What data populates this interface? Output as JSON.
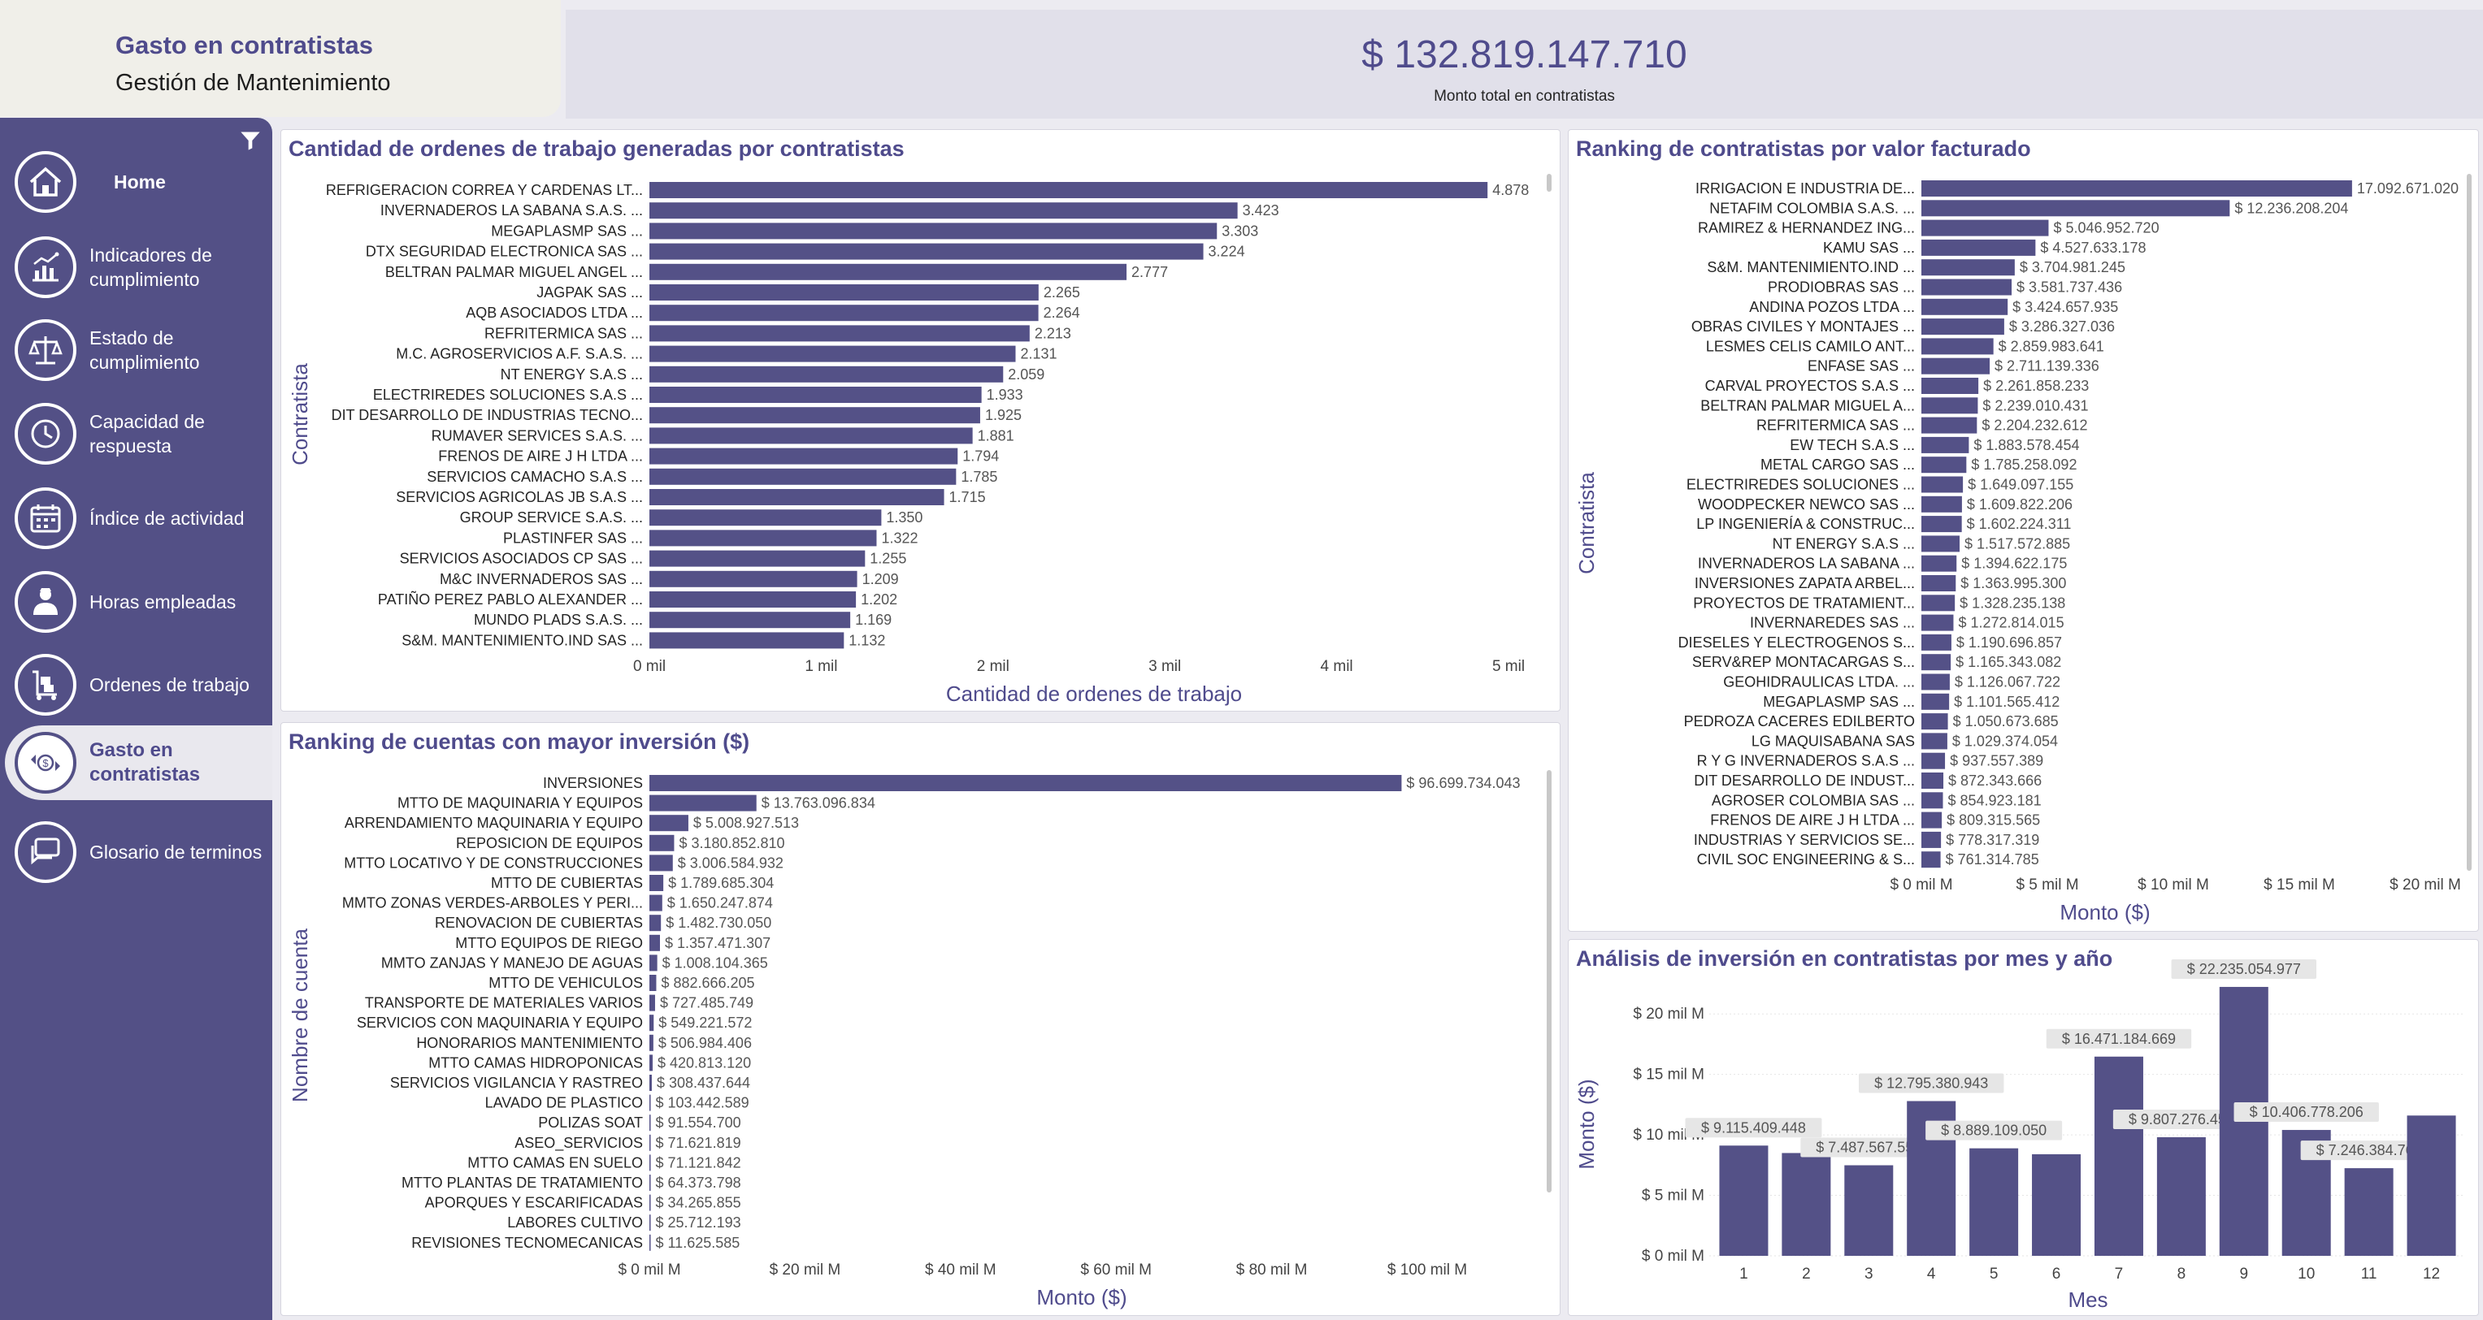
{
  "header": {
    "title": "Gasto en contratistas",
    "subtitle": "Gestión de Mantenimiento",
    "kpi_value": "$ 132.819.147.710",
    "kpi_label": "Monto total en contratistas"
  },
  "colors": {
    "accent": "#535086",
    "bar": "#545187",
    "title": "#4f4b8c"
  },
  "sidebar": {
    "filter_icon": "filter-icon",
    "items": [
      {
        "label": "Home",
        "icon": "home-icon"
      },
      {
        "label": "Indicadores de cumplimiento",
        "icon": "chart-icon"
      },
      {
        "label": "Estado de cumplimiento",
        "icon": "scale-icon"
      },
      {
        "label": "Capacidad de respuesta",
        "icon": "clock-icon"
      },
      {
        "label": "Índice de actividad",
        "icon": "calendar-icon"
      },
      {
        "label": "Horas empleadas",
        "icon": "worker-icon"
      },
      {
        "label": "Ordenes de trabajo",
        "icon": "cart-icon"
      },
      {
        "label": "Gasto en contratistas",
        "icon": "money-exchange-icon",
        "active": true
      },
      {
        "label": "Glosario de terminos",
        "icon": "chat-icon"
      }
    ]
  },
  "chart_data": [
    {
      "id": "ordenes",
      "type": "bar",
      "orientation": "horizontal",
      "title": "Cantidad de ordenes de trabajo generadas por contratistas",
      "xlabel": "Cantidad de ordenes de trabajo",
      "ylabel": "Contratista",
      "xlim": [
        0,
        5000
      ],
      "xticks": [
        0,
        1000,
        2000,
        3000,
        4000,
        5000
      ],
      "xtick_labels": [
        "0 mil",
        "1 mil",
        "2 mil",
        "3 mil",
        "4 mil",
        "5 mil"
      ],
      "categories": [
        "REFRIGERACION CORREA Y CARDENAS LT...",
        "INVERNADEROS LA SABANA S.A.S. ...",
        "MEGAPLASMP SAS ...",
        "DTX SEGURIDAD ELECTRONICA SAS ...",
        "BELTRAN PALMAR MIGUEL ANGEL ...",
        "JAGPAK SAS ...",
        "AQB ASOCIADOS LTDA ...",
        "REFRITERMICA SAS ...",
        "M.C. AGROSERVICIOS A.F. S.A.S. ...",
        "NT ENERGY S.A.S ...",
        "ELECTRIREDES SOLUCIONES S.A.S ...",
        "DIT DESARROLLO DE INDUSTRIAS TECNO...",
        "RUMAVER SERVICES S.A.S. ...",
        "FRENOS DE AIRE J H LTDA ...",
        "SERVICIOS CAMACHO S.A.S ...",
        "SERVICIOS AGRICOLAS JB S.A.S ...",
        "GROUP SERVICE S.A.S. ...",
        "PLASTINFER SAS ...",
        "SERVICIOS ASOCIADOS CP SAS ...",
        "M&C INVERNADEROS SAS ...",
        "PATIÑO PEREZ PABLO ALEXANDER ...",
        "MUNDO PLADS S.A.S. ...",
        "S&M. MANTENIMIENTO.IND SAS ..."
      ],
      "values": [
        4878,
        3423,
        3303,
        3224,
        2777,
        2265,
        2264,
        2213,
        2131,
        2059,
        1933,
        1925,
        1881,
        1794,
        1785,
        1715,
        1350,
        1322,
        1255,
        1209,
        1202,
        1169,
        1132
      ],
      "value_labels": [
        "4.878",
        "3.423",
        "3.303",
        "3.224",
        "2.777",
        "2.265",
        "2.264",
        "2.213",
        "2.131",
        "2.059",
        "1.933",
        "1.925",
        "1.881",
        "1.794",
        "1.785",
        "1.715",
        "1.350",
        "1.322",
        "1.255",
        "1.209",
        "1.202",
        "1.169",
        "1.132"
      ]
    },
    {
      "id": "cuentas",
      "type": "bar",
      "orientation": "horizontal",
      "title": "Ranking de cuentas con mayor inversión ($)",
      "xlabel": "Monto ($)",
      "ylabel": "Nombre de cuenta",
      "xlim": [
        0,
        100000000000
      ],
      "xticks": [
        0,
        20000000000,
        40000000000,
        60000000000,
        80000000000,
        100000000000
      ],
      "xtick_labels": [
        "$ 0 mil M",
        "$ 20 mil M",
        "$ 40 mil M",
        "$ 60 mil M",
        "$ 80 mil M",
        "$ 100 mil M"
      ],
      "categories": [
        "INVERSIONES",
        "MTTO DE MAQUINARIA Y EQUIPOS",
        "ARRENDAMIENTO MAQUINARIA Y EQUIPO",
        "REPOSICION DE EQUIPOS",
        "MTTO LOCATIVO Y DE CONSTRUCCIONES",
        "MTTO DE CUBIERTAS",
        "MMTO ZONAS VERDES-ARBOLES Y PERI...",
        "RENOVACION DE CUBIERTAS",
        "MTTO EQUIPOS DE RIEGO",
        "MMTO ZANJAS Y MANEJO DE AGUAS",
        "MTTO DE VEHICULOS",
        "TRANSPORTE DE MATERIALES VARIOS",
        "SERVICIOS CON MAQUINARIA Y EQUIPO",
        "HONORARIOS MANTENIMIENTO",
        "MTTO CAMAS HIDROPONICAS",
        "SERVICIOS VIGILANCIA Y RASTREO",
        "LAVADO DE PLASTICO",
        "POLIZAS SOAT",
        "ASEO_SERVICIOS",
        "MTTO CAMAS EN SUELO",
        "MTTO PLANTAS DE TRATAMIENTO",
        "APORQUES Y ESCARIFICADAS",
        "LABORES CULTIVO",
        "REVISIONES TECNOMECANICAS"
      ],
      "values": [
        96699734043,
        13763096834,
        5008927513,
        3180852810,
        3006584932,
        1789685304,
        1650247874,
        1482730050,
        1357471307,
        1008104365,
        882666205,
        727485749,
        549221572,
        506984406,
        420813120,
        308437644,
        103442589,
        91554700,
        71621819,
        71121842,
        64373798,
        34265855,
        25712193,
        11625585
      ],
      "value_labels": [
        "$ 96.699.734.043",
        "$ 13.763.096.834",
        "$ 5.008.927.513",
        "$ 3.180.852.810",
        "$ 3.006.584.932",
        "$ 1.789.685.304",
        "$ 1.650.247.874",
        "$ 1.482.730.050",
        "$ 1.357.471.307",
        "$ 1.008.104.365",
        "$ 882.666.205",
        "$ 727.485.749",
        "$ 549.221.572",
        "$ 506.984.406",
        "$ 420.813.120",
        "$ 308.437.644",
        "$ 103.442.589",
        "$ 91.554.700",
        "$ 71.621.819",
        "$ 71.121.842",
        "$ 64.373.798",
        "$ 34.265.855",
        "$ 25.712.193",
        "$ 11.625.585"
      ]
    },
    {
      "id": "ranking",
      "type": "bar",
      "orientation": "horizontal",
      "title": "Ranking de contratistas por valor facturado",
      "xlabel": "Monto ($)",
      "ylabel": "Contratista",
      "xlim": [
        0,
        20000000000
      ],
      "xticks": [
        0,
        5000000000,
        10000000000,
        15000000000,
        20000000000
      ],
      "xtick_labels": [
        "$ 0 mil M",
        "$ 5 mil M",
        "$ 10 mil M",
        "$ 15 mil M",
        "$ 20 mil M"
      ],
      "categories": [
        "IRRIGACION E INDUSTRIA DE...",
        "NETAFIM COLOMBIA S.A.S. ...",
        "RAMIREZ & HERNANDEZ ING...",
        "KAMU SAS ...",
        "S&M. MANTENIMIENTO.IND ...",
        "PRODIOBRAS SAS ...",
        "ANDINA POZOS LTDA ...",
        "OBRAS CIVILES Y MONTAJES ...",
        "LESMES CELIS CAMILO ANT...",
        "ENFASE SAS ...",
        "CARVAL PROYECTOS S.A.S ...",
        "BELTRAN PALMAR MIGUEL A...",
        "REFRITERMICA SAS ...",
        "EW TECH S.A.S ...",
        "METAL CARGO SAS ...",
        "ELECTRIREDES SOLUCIONES ...",
        "WOODPECKER NEWCO SAS ...",
        "LP INGENIERÍA & CONSTRUC...",
        "NT ENERGY S.A.S ...",
        "INVERNADEROS LA SABANA ...",
        "INVERSIONES ZAPATA ARBEL...",
        "PROYECTOS DE TRATAMIENT...",
        "INVERNAREDES SAS ...",
        "DIESELES Y ELECTROGENOS S...",
        "SERV&REP MONTACARGAS S...",
        "GEOHIDRAULICAS LTDA. ...",
        "MEGAPLASMP SAS ...",
        "PEDROZA CACERES EDILBERTO",
        "LG MAQUISABANA SAS",
        "R Y G INVERNADEROS S.A.S ...",
        "DIT DESARROLLO DE INDUST...",
        "AGROSER COLOMBIA SAS ...",
        "FRENOS DE AIRE J H LTDA ...",
        "INDUSTRIAS Y SERVICIOS SE...",
        "CIVIL SOC ENGINEERING & S..."
      ],
      "values": [
        17092671020,
        12236208204,
        5046952720,
        4527633178,
        3704981245,
        3581737436,
        3424657935,
        3286327036,
        2859983641,
        2711139336,
        2261858233,
        2239010431,
        2204232612,
        1883578454,
        1785258092,
        1649097155,
        1609822206,
        1602224311,
        1517572885,
        1394622175,
        1363995300,
        1328235138,
        1272814015,
        1190696857,
        1165343082,
        1126067722,
        1101565412,
        1050673685,
        1029374054,
        937557389,
        872343666,
        854923181,
        809315565,
        778317319,
        761314785
      ],
      "value_labels": [
        "17.092.671.020",
        "$ 12.236.208.204",
        "$ 5.046.952.720",
        "$ 4.527.633.178",
        "$ 3.704.981.245",
        "$ 3.581.737.436",
        "$ 3.424.657.935",
        "$ 3.286.327.036",
        "$ 2.859.983.641",
        "$ 2.711.139.336",
        "$ 2.261.858.233",
        "$ 2.239.010.431",
        "$ 2.204.232.612",
        "$ 1.883.578.454",
        "$ 1.785.258.092",
        "$ 1.649.097.155",
        "$ 1.609.822.206",
        "$ 1.602.224.311",
        "$ 1.517.572.885",
        "$ 1.394.622.175",
        "$ 1.363.995.300",
        "$ 1.328.235.138",
        "$ 1.272.814.015",
        "$ 1.190.696.857",
        "$ 1.165.343.082",
        "$ 1.126.067.722",
        "$ 1.101.565.412",
        "$ 1.050.673.685",
        "$ 1.029.374.054",
        "$ 937.557.389",
        "$ 872.343.666",
        "$ 854.923.181",
        "$ 809.315.565",
        "$ 778.317.319",
        "$ 761.314.785"
      ]
    },
    {
      "id": "mes",
      "type": "bar",
      "orientation": "vertical",
      "title": "Análisis de inversión en contratistas por mes y año",
      "xlabel": "Mes",
      "ylabel": "Monto ($)",
      "ylim": [
        0,
        22500000000
      ],
      "yticks": [
        0,
        5000000000,
        10000000000,
        15000000000,
        20000000000
      ],
      "ytick_labels": [
        "$ 0 mil M",
        "$ 5 mil M",
        "$ 10 mil M",
        "$ 15 mil M",
        "$ 20 mil M"
      ],
      "categories": [
        "1",
        "2",
        "3",
        "4",
        "5",
        "6",
        "7",
        "8",
        "9",
        "10",
        "11",
        "12"
      ],
      "values": [
        9115409448,
        8500000000,
        7487567554,
        12795380943,
        8889109050,
        8400000000,
        16471184669,
        9807276456,
        22235054977,
        10406778206,
        7246384764,
        11600000000
      ],
      "value_labels": [
        "$ 9.115.409.448",
        "",
        "$ 7.487.567.554",
        "$ 12.795.380.943",
        "$ 8.889.109.050",
        "",
        "$ 16.471.184.669",
        "$ 9.807.276.456",
        "$ 22.235.054.977",
        "$ 10.406.778.206",
        "$ 7.246.384.764",
        ""
      ]
    }
  ]
}
